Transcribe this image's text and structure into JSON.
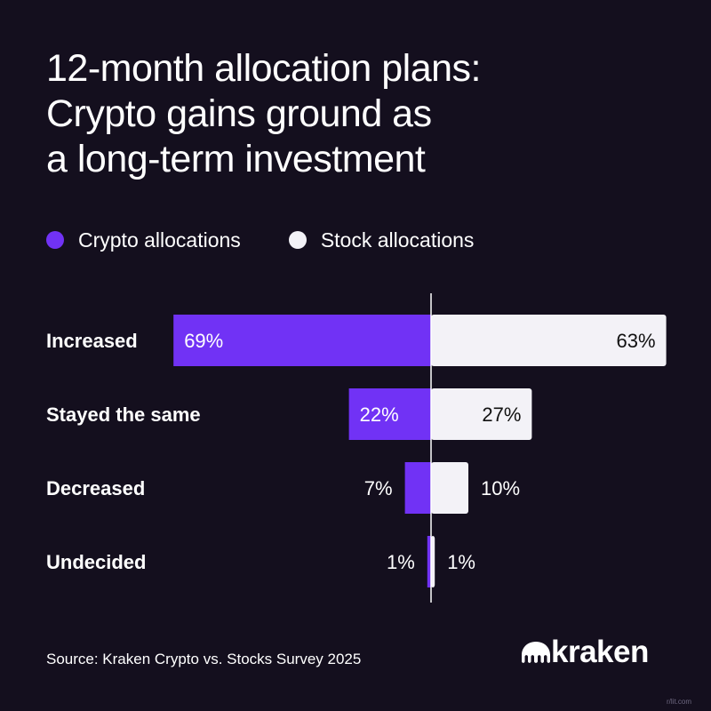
{
  "title_lines": [
    "12-month allocation plans:",
    "Crypto gains ground as",
    "a long-term investment"
  ],
  "legend": {
    "crypto_label": "Crypto allocations",
    "stock_label": "Stock allocations"
  },
  "colors": {
    "crypto": "#7132f5",
    "stock": "#f3f2f7",
    "background": "#140f1e",
    "axis": "#ffffff"
  },
  "chart_data": {
    "type": "bar",
    "orientation": "diverging-horizontal",
    "categories": [
      "Increased",
      "Stayed the same",
      "Decreased",
      "Undecided"
    ],
    "series": [
      {
        "name": "Crypto allocations",
        "values": [
          69,
          22,
          7,
          1
        ],
        "labels": [
          "69%",
          "22%",
          "7%",
          "1%"
        ]
      },
      {
        "name": "Stock allocations",
        "values": [
          63,
          27,
          10,
          1
        ],
        "labels": [
          "63%",
          "27%",
          "10%",
          "1%"
        ]
      }
    ],
    "unit": "%",
    "grid": false,
    "legend_position": "top-left"
  },
  "source": "Source: Kraken Crypto vs. Stocks Survey 2025",
  "logo": {
    "text": "kraken",
    "icon": "kraken-logo-icon"
  },
  "watermark": "r/lit.com"
}
